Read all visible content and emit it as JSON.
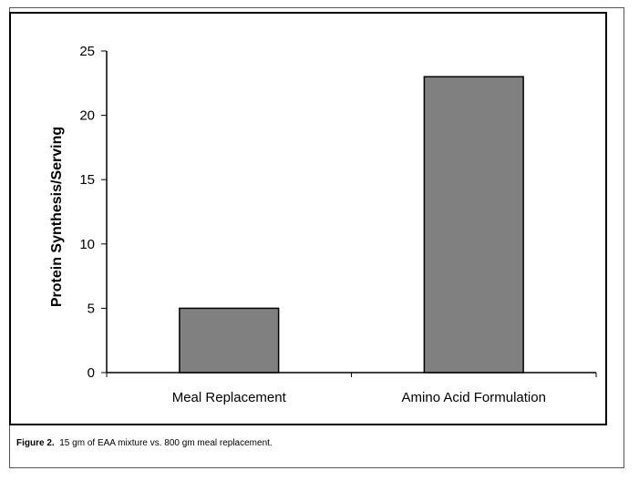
{
  "chart_data": {
    "type": "bar",
    "categories": [
      "Meal Replacement",
      "Amino Acid Formulation"
    ],
    "values": [
      5,
      23
    ],
    "title": "",
    "xlabel": "",
    "ylabel": "Protein Synthesis/Serving",
    "ylim": [
      0,
      25
    ],
    "yticks": [
      "0",
      "5",
      "10",
      "15",
      "20",
      "25"
    ],
    "bar_color": "#808080",
    "grid": false,
    "legend": "none"
  },
  "caption": {
    "label": "Figure 2.",
    "text": "15 gm of EAA mixture vs. 800 gm meal replacement."
  }
}
